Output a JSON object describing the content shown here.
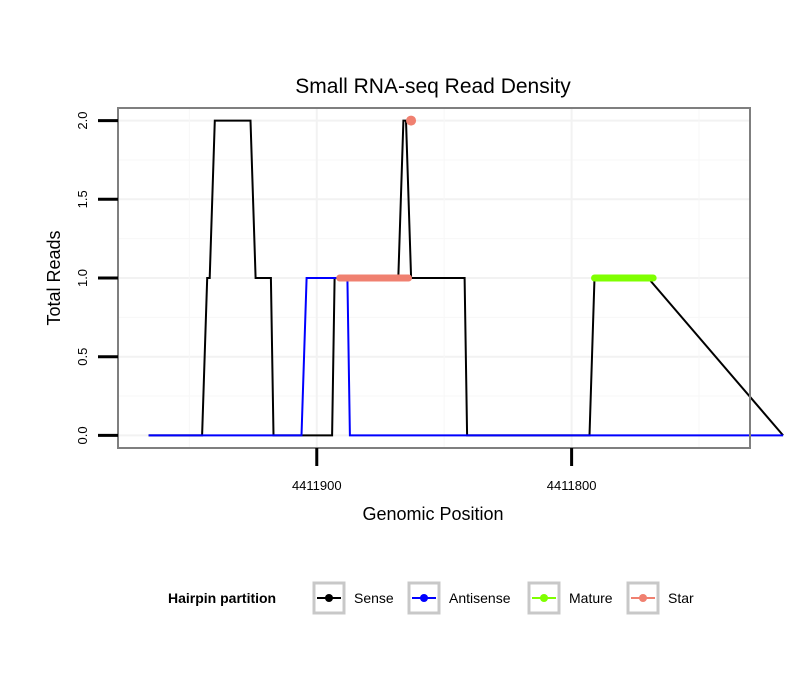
{
  "chart_data": {
    "type": "line",
    "title": "Small RNA-seq Read Density",
    "xlabel": "Genomic Position",
    "ylabel": "Total Reads",
    "x_reversed": true,
    "xlim": [
      4411978,
      4411730
    ],
    "ylim": [
      -0.08,
      2.08
    ],
    "x_ticks": [
      4411900,
      4411800
    ],
    "x_tick_labels": [
      "4411900",
      "4411800"
    ],
    "y_ticks": [
      0.0,
      0.5,
      1.0,
      1.5,
      2.0
    ],
    "y_tick_labels": [
      "0.0",
      "0.5",
      "1.0",
      "1.5",
      "2.0"
    ],
    "grid": true,
    "legend_title": "Hairpin partition",
    "legend_position": "bottom",
    "series": [
      {
        "name": "Sense",
        "color": "#000000",
        "marker": "line",
        "x": [
          4411966,
          4411945,
          4411943,
          4411942,
          4411940,
          4411926,
          4411924,
          4411919,
          4411918,
          4411917,
          4411903,
          4411900,
          4411894,
          4411893,
          4411870,
          4411868,
          4411866,
          4411865,
          4411863,
          4411855,
          4411854,
          4411842,
          4411841,
          4411818,
          4411793,
          4411791,
          4411792,
          4411770,
          4411717
        ],
        "values": [
          0,
          0,
          1,
          1,
          2,
          2,
          1,
          1,
          1,
          0,
          0,
          0,
          0,
          1,
          1,
          1,
          2,
          2,
          1,
          1,
          1,
          1,
          0,
          0,
          0,
          1,
          1,
          1,
          0
        ]
      },
      {
        "name": "Antisense",
        "color": "#0000ff",
        "marker": "line",
        "x": [
          4411966,
          4411906,
          4411904,
          4411888,
          4411887,
          4411842,
          4411818,
          4411770,
          4411717
        ],
        "values": [
          0,
          0,
          1,
          1,
          0,
          0,
          0,
          0,
          0
        ]
      },
      {
        "name": "Mature",
        "color": "#7fff00",
        "marker": "segment",
        "x": [
          4411791,
          4411768
        ],
        "values": [
          1,
          1
        ]
      },
      {
        "name": "Star",
        "color": "#f08070",
        "marker": "segment",
        "x": [
          4411891,
          4411864
        ],
        "values": [
          1,
          1
        ],
        "points": [
          {
            "x": 4411863,
            "y": 2
          }
        ]
      }
    ]
  }
}
